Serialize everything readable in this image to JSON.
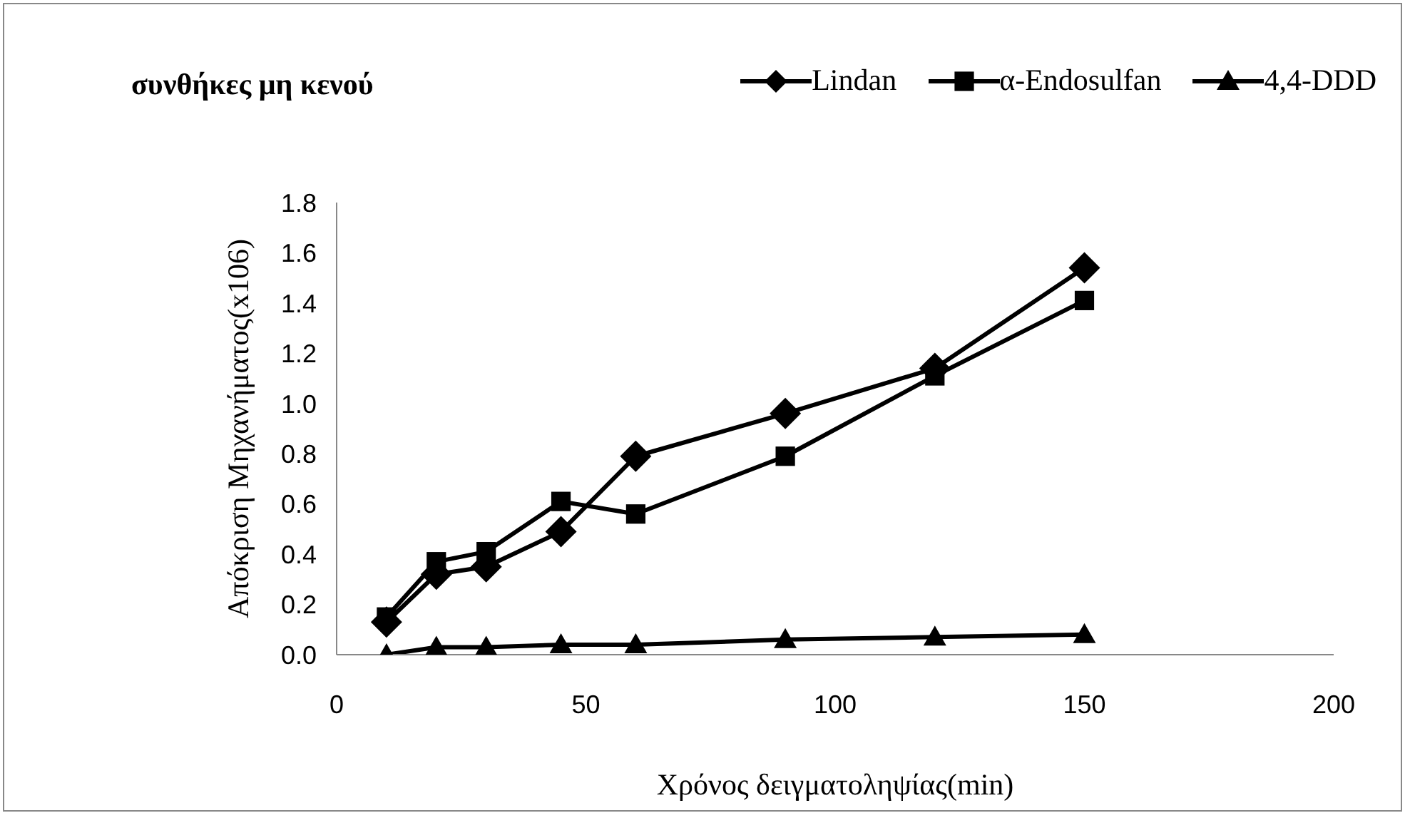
{
  "chart_data": {
    "type": "line",
    "title": "συνθήκες μη κενού",
    "xlabel": "Χρόνος δειγματοληψίας(min)",
    "ylabel": "Απόκριση Μηχανήματος(x106)",
    "x": [
      10,
      20,
      30,
      45,
      60,
      90,
      120,
      150
    ],
    "series": [
      {
        "name": "Lindan",
        "color": "#000000",
        "marker": "diamond",
        "values": [
          0.13,
          0.32,
          0.35,
          0.49,
          0.79,
          0.96,
          1.14,
          1.54
        ]
      },
      {
        "name": "α-Endosulfan",
        "color": "#000000",
        "marker": "square",
        "values": [
          0.15,
          0.37,
          0.41,
          0.61,
          0.56,
          0.79,
          1.11,
          1.41
        ]
      },
      {
        "name": "4,4-DDD",
        "color": "#000000",
        "marker": "triangle",
        "values": [
          0.0,
          0.03,
          0.03,
          0.04,
          0.04,
          0.06,
          0.07,
          0.08
        ]
      }
    ],
    "xlim": [
      0,
      200
    ],
    "xticks": [
      0,
      50,
      100,
      150,
      200
    ],
    "ylim": [
      0,
      1.8
    ],
    "yticks": [
      {
        "value": 0,
        "label": "0.0"
      },
      0.2,
      0.4,
      0.6,
      0.8,
      {
        "value": 1,
        "label": "1.0"
      },
      1.2,
      1.4,
      1.6,
      1.8
    ],
    "grid": false,
    "legend": "top right",
    "line_style": "solid"
  }
}
